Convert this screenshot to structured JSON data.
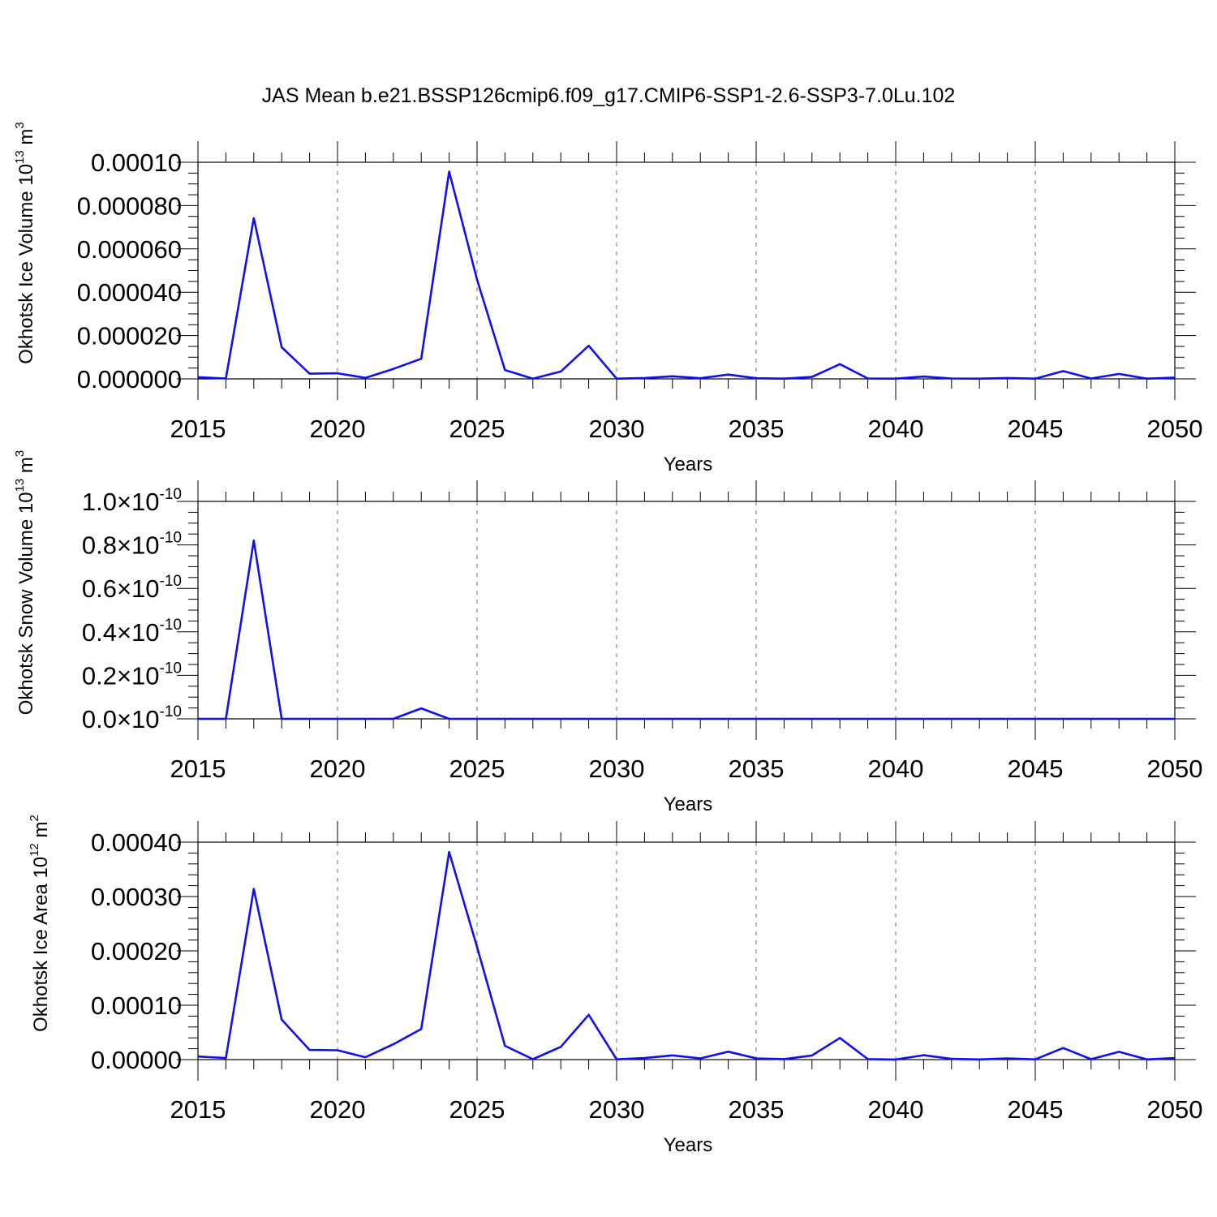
{
  "title": "JAS Mean b.e21.BSSP126cmip6.f09_g17.CMIP6-SSP1-2.6-SSP3-7.0Lu.102",
  "colors": {
    "series": "#1010ee",
    "grid": "#8a8a8a",
    "axes": "#000000"
  },
  "chart_data": [
    {
      "type": "line",
      "ylabel": "Okhotsk Ice Volume 10",
      "ylabel_sup": "13",
      "ylabel_unit": "m",
      "ylabel_unit_sup": "3",
      "xlabel": "Years",
      "xlim": [
        2015,
        2050
      ],
      "ylim": [
        0,
        0.0001
      ],
      "grid": "vertical dashed at major x ticks",
      "x_tick_labels": [
        "2015",
        "2020",
        "2025",
        "2030",
        "2035",
        "2040",
        "2045",
        "2050"
      ],
      "y_ticks": [
        0,
        2e-05,
        4e-05,
        6e-05,
        8e-05,
        0.0001
      ],
      "y_tick_labels": [
        {
          "text": "0.000000",
          "sup": ""
        },
        {
          "text": "0.000020",
          "sup": ""
        },
        {
          "text": "0.000040",
          "sup": ""
        },
        {
          "text": "0.000060",
          "sup": ""
        },
        {
          "text": "0.000080",
          "sup": ""
        },
        {
          "text": "0.00010",
          "sup": ""
        }
      ],
      "x": [
        2015,
        2016,
        2017,
        2018,
        2019,
        2020,
        2021,
        2022,
        2023,
        2024,
        2025,
        2026,
        2027,
        2028,
        2029,
        2030,
        2031,
        2032,
        2033,
        2034,
        2035,
        2036,
        2037,
        2038,
        2039,
        2040,
        2041,
        2042,
        2043,
        2044,
        2045,
        2046,
        2047,
        2048,
        2049,
        2050
      ],
      "values": [
        8e-07,
        2e-07,
        7.42e-05,
        1.46e-05,
        2.4e-06,
        2.6e-06,
        5e-07,
        4.6e-06,
        9.3e-06,
        9.57e-05,
        4.58e-05,
        4.1e-06,
        1e-07,
        3.4e-06,
        1.53e-05,
        1e-07,
        4e-07,
        1.2e-06,
        3e-07,
        2e-06,
        3e-07,
        1e-07,
        9e-07,
        6.8e-06,
        2e-07,
        1e-07,
        1.1e-06,
        2e-07,
        1e-07,
        4e-07,
        1e-07,
        3.6e-06,
        2e-07,
        2.3e-06,
        1e-07,
        6e-07
      ]
    },
    {
      "type": "line",
      "ylabel": "Okhotsk Snow Volume 10",
      "ylabel_sup": "13",
      "ylabel_unit": "m",
      "ylabel_unit_sup": "3",
      "xlabel": "Years",
      "xlim": [
        2015,
        2050
      ],
      "ylim": [
        0,
        1e-10
      ],
      "grid": "vertical dashed at major x ticks",
      "x_tick_labels": [
        "2015",
        "2020",
        "2025",
        "2030",
        "2035",
        "2040",
        "2045",
        "2050"
      ],
      "y_ticks": [
        0,
        2e-11,
        4e-11,
        6e-11,
        8e-11,
        1e-10
      ],
      "y_tick_labels": [
        {
          "text": "0.0×10",
          "sup": "-10"
        },
        {
          "text": "0.2×10",
          "sup": "-10"
        },
        {
          "text": "0.4×10",
          "sup": "-10"
        },
        {
          "text": "0.6×10",
          "sup": "-10"
        },
        {
          "text": "0.8×10",
          "sup": "-10"
        },
        {
          "text": "1.0×10",
          "sup": "-10"
        }
      ],
      "x": [
        2015,
        2016,
        2017,
        2018,
        2019,
        2020,
        2021,
        2022,
        2023,
        2024,
        2025,
        2026,
        2027,
        2028,
        2029,
        2030,
        2031,
        2032,
        2033,
        2034,
        2035,
        2036,
        2037,
        2038,
        2039,
        2040,
        2041,
        2042,
        2043,
        2044,
        2045,
        2046,
        2047,
        2048,
        2049,
        2050
      ],
      "values": [
        0,
        0,
        8.2e-11,
        0,
        0,
        0,
        0,
        0,
        4.8e-12,
        0,
        0,
        0,
        0,
        0,
        0,
        0,
        0,
        0,
        0,
        0,
        0,
        0,
        0,
        0,
        0,
        0,
        0,
        0,
        0,
        0,
        0,
        0,
        0,
        0,
        0,
        0
      ]
    },
    {
      "type": "line",
      "ylabel": "Okhotsk Ice Area 10",
      "ylabel_sup": "12",
      "ylabel_unit": "m",
      "ylabel_unit_sup": "2",
      "xlabel": "Years",
      "xlim": [
        2015,
        2050
      ],
      "ylim": [
        0,
        0.0004
      ],
      "grid": "vertical dashed at major x ticks",
      "x_tick_labels": [
        "2015",
        "2020",
        "2025",
        "2030",
        "2035",
        "2040",
        "2045",
        "2050"
      ],
      "y_ticks": [
        0,
        0.0001,
        0.0002,
        0.0003,
        0.0004
      ],
      "y_tick_labels": [
        {
          "text": "0.00000",
          "sup": ""
        },
        {
          "text": "0.00010",
          "sup": ""
        },
        {
          "text": "0.00020",
          "sup": ""
        },
        {
          "text": "0.00030",
          "sup": ""
        },
        {
          "text": "0.00040",
          "sup": ""
        }
      ],
      "x": [
        2015,
        2016,
        2017,
        2018,
        2019,
        2020,
        2021,
        2022,
        2023,
        2024,
        2025,
        2026,
        2027,
        2028,
        2029,
        2030,
        2031,
        2032,
        2033,
        2034,
        2035,
        2036,
        2037,
        2038,
        2039,
        2040,
        2041,
        2042,
        2043,
        2044,
        2045,
        2046,
        2047,
        2048,
        2049,
        2050
      ],
      "values": [
        5.6e-06,
        2.9e-06,
        0.000314,
        7.34e-05,
        1.77e-05,
        1.72e-05,
        4.4e-06,
        2.82e-05,
        5.63e-05,
        0.000382,
        0.000207,
        2.53e-05,
        7e-07,
        2.34e-05,
        8.24e-05,
        5e-07,
        2.9e-06,
        7.7e-06,
        2.3e-06,
        1.47e-05,
        2.3e-06,
        9e-07,
        7.6e-06,
        3.98e-05,
        9e-07,
        2e-07,
        8.1e-06,
        1.4e-06,
        3e-07,
        2.3e-06,
        4e-07,
        2.13e-05,
        8e-07,
        1.43e-05,
        3e-07,
        2.9e-06
      ]
    }
  ]
}
